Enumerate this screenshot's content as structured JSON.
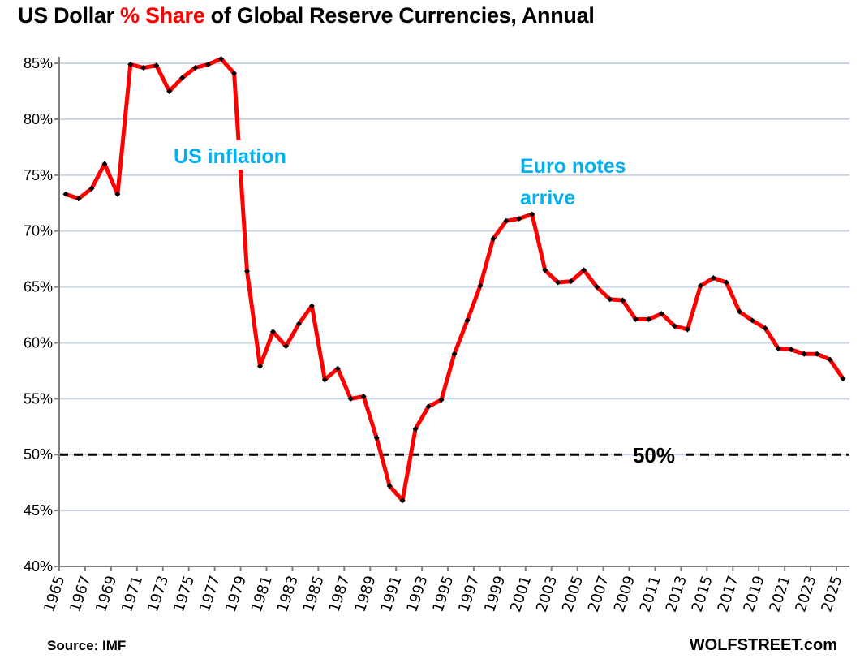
{
  "header": {
    "title_part1": "US Dollar ",
    "title_accent": "% Share",
    "title_part2": " of Global Reserve Currencies, Annual",
    "accent_color": "#ff0000"
  },
  "footer": {
    "source": "Source: IMF",
    "brand": "WOLFSTREET.com"
  },
  "chart_data": {
    "type": "line",
    "title": "US Dollar % Share of Global Reserve Currencies, Annual",
    "xlabel": "",
    "ylabel": "",
    "ylim": [
      40,
      85
    ],
    "yticks": [
      40,
      45,
      50,
      55,
      60,
      65,
      70,
      75,
      80,
      85
    ],
    "ytick_format": "%",
    "grid": "horizontal",
    "x": [
      1965,
      1966,
      1967,
      1968,
      1969,
      1970,
      1971,
      1972,
      1973,
      1974,
      1975,
      1976,
      1977,
      1978,
      1979,
      1980,
      1981,
      1982,
      1983,
      1984,
      1985,
      1986,
      1987,
      1988,
      1989,
      1990,
      1991,
      1992,
      1993,
      1994,
      1995,
      1996,
      1997,
      1998,
      1999,
      2000,
      2001,
      2002,
      2003,
      2004,
      2005,
      2006,
      2007,
      2008,
      2009,
      2010,
      2011,
      2012,
      2013,
      2014,
      2015,
      2016,
      2017,
      2018,
      2019,
      2020,
      2021,
      2022,
      2023,
      2024,
      2025
    ],
    "xtick_labels": [
      "1965",
      "1967",
      "1969",
      "1971",
      "1973",
      "1975",
      "1977",
      "1979",
      "1981",
      "1983",
      "1985",
      "1987",
      "1989",
      "1991",
      "1993",
      "1995",
      "1997",
      "1999",
      "2001",
      "2003",
      "2005",
      "2007",
      "2009",
      "2011",
      "2013",
      "2015",
      "2017",
      "2019",
      "2021",
      "2023",
      "2025"
    ],
    "series": [
      {
        "name": "USD share of global reserves (%)",
        "color": "#ff0000",
        "marker_color": "#000000",
        "values": [
          73.3,
          72.9,
          73.8,
          76.0,
          73.3,
          84.9,
          84.6,
          84.8,
          82.5,
          83.7,
          84.6,
          84.9,
          85.4,
          84.1,
          66.4,
          57.9,
          61.0,
          59.7,
          61.7,
          63.3,
          56.7,
          57.7,
          55.0,
          55.2,
          51.5,
          47.2,
          45.9,
          52.3,
          54.3,
          54.9,
          59.0,
          62.0,
          65.1,
          69.3,
          70.9,
          71.1,
          71.5,
          66.5,
          65.4,
          65.5,
          66.5,
          65.0,
          63.9,
          63.8,
          62.1,
          62.1,
          62.6,
          61.5,
          61.2,
          65.1,
          65.8,
          65.4,
          62.8,
          62.0,
          61.3,
          59.5,
          59.4,
          59.0,
          59.0,
          58.5,
          56.8
        ]
      }
    ],
    "reference_line": {
      "value": 50,
      "label": "50%",
      "style": "dashed",
      "color": "#000000"
    },
    "annotations": [
      {
        "text": "US inflation",
        "near_year": 1979,
        "color": "#00b0f0"
      },
      {
        "text_line1": "Euro notes",
        "text_line2": "arrive",
        "near_year": 2000,
        "color": "#00b0f0"
      }
    ]
  }
}
